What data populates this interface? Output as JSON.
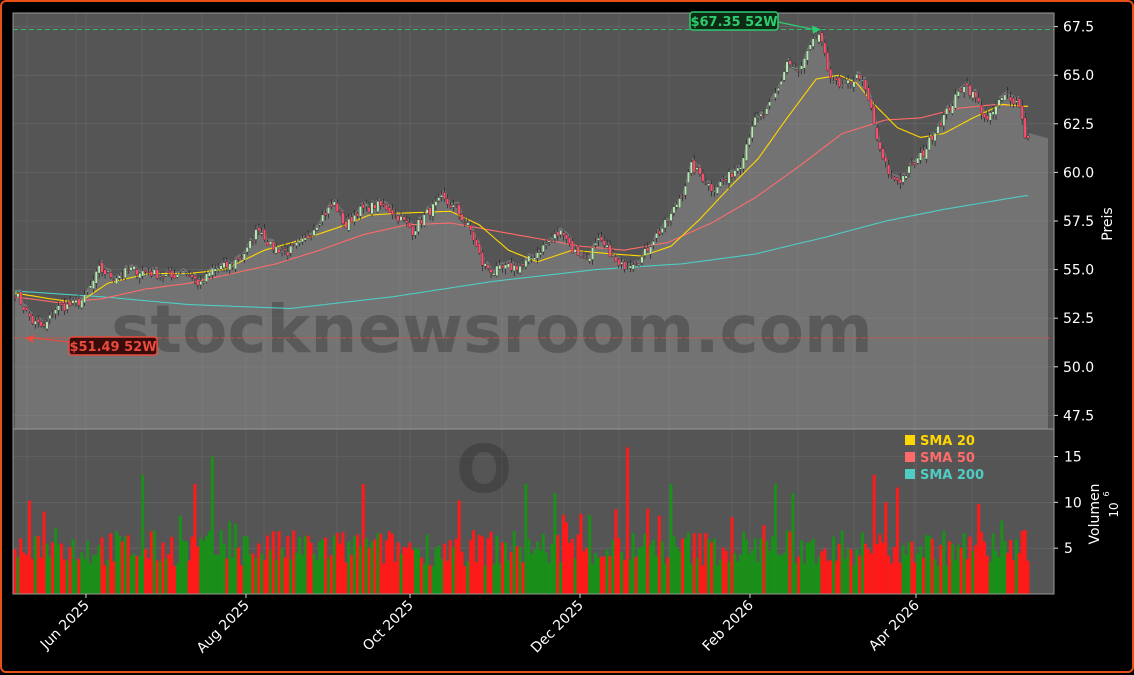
{
  "watermark": "stocknewsroom.com",
  "ticker_watermark": "O",
  "chart_data": {
    "type": "candlestick",
    "price_axis": {
      "label": "Preis",
      "ylim": [
        46.8,
        68.2
      ],
      "ticks": [
        47.5,
        50.0,
        52.5,
        55.0,
        57.5,
        60.0,
        62.5,
        65.0,
        67.5
      ]
    },
    "volume_axis": {
      "label": "Volumen",
      "unit": "10",
      "unit_exp": "6",
      "ylim": [
        0,
        18
      ],
      "ticks": [
        5,
        10,
        15
      ]
    },
    "x_labels": [
      "Jun 2025",
      "Aug 2025",
      "Oct 2025",
      "Dec 2025",
      "Feb 2026",
      "Apr 2026"
    ],
    "annotations": {
      "high": {
        "label": "$67.35 52W",
        "value": 67.35,
        "color": "#2ecc71"
      },
      "low": {
        "label": "$51.49 52W",
        "value": 51.49,
        "color": "#e74c3c"
      }
    },
    "legend": {
      "placement": "top-right (volume panel)",
      "items": [
        {
          "name": "SMA 20",
          "color": "#ffd700"
        },
        {
          "name": "SMA 50",
          "color": "#ff6b6b"
        },
        {
          "name": "SMA 200",
          "color": "#4ecdc4"
        }
      ]
    },
    "anchors_close": [
      [
        0,
        53.8
      ],
      [
        6,
        52.3
      ],
      [
        10,
        52.0
      ],
      [
        14,
        53.0
      ],
      [
        20,
        53.2
      ],
      [
        24,
        53.5
      ],
      [
        29,
        55.0
      ],
      [
        34,
        54.6
      ],
      [
        40,
        55.0
      ],
      [
        48,
        54.8
      ],
      [
        54,
        54.6
      ],
      [
        58,
        55.0
      ],
      [
        64,
        54.2
      ],
      [
        68,
        55.0
      ],
      [
        74,
        55.2
      ],
      [
        80,
        56.0
      ],
      [
        84,
        57.2
      ],
      [
        88,
        56.2
      ],
      [
        94,
        55.9
      ],
      [
        100,
        56.5
      ],
      [
        105,
        57.6
      ],
      [
        110,
        58.4
      ],
      [
        114,
        57.2
      ],
      [
        118,
        58.0
      ],
      [
        124,
        58.3
      ],
      [
        128,
        58.2
      ],
      [
        133,
        57.6
      ],
      [
        137,
        57.0
      ],
      [
        142,
        57.9
      ],
      [
        147,
        58.6
      ],
      [
        152,
        58.1
      ],
      [
        157,
        57.0
      ],
      [
        161,
        55.3
      ],
      [
        165,
        54.9
      ],
      [
        170,
        55.1
      ],
      [
        175,
        55.2
      ],
      [
        180,
        55.9
      ],
      [
        185,
        56.6
      ],
      [
        189,
        57.0
      ],
      [
        192,
        56.0
      ],
      [
        197,
        55.6
      ],
      [
        201,
        56.4
      ],
      [
        205,
        55.9
      ],
      [
        208,
        55.1
      ],
      [
        212,
        55.4
      ],
      [
        216,
        55.6
      ],
      [
        220,
        56.6
      ],
      [
        225,
        57.5
      ],
      [
        230,
        59.0
      ],
      [
        233,
        60.3
      ],
      [
        236,
        59.9
      ],
      [
        240,
        59.2
      ],
      [
        245,
        59.6
      ],
      [
        250,
        60.5
      ],
      [
        254,
        62.5
      ],
      [
        259,
        63.1
      ],
      [
        263,
        64.3
      ],
      [
        266,
        65.7
      ],
      [
        270,
        65.1
      ],
      [
        274,
        66.4
      ],
      [
        277,
        67.1
      ],
      [
        280,
        65.3
      ],
      [
        284,
        64.3
      ],
      [
        287,
        64.6
      ],
      [
        291,
        65.0
      ],
      [
        295,
        63.2
      ],
      [
        298,
        61.0
      ],
      [
        302,
        59.7
      ],
      [
        305,
        59.6
      ],
      [
        309,
        60.3
      ],
      [
        313,
        61.0
      ],
      [
        317,
        62.2
      ],
      [
        321,
        63.1
      ],
      [
        324,
        63.8
      ],
      [
        327,
        64.6
      ],
      [
        331,
        63.8
      ],
      [
        335,
        62.6
      ],
      [
        339,
        63.6
      ],
      [
        342,
        64.0
      ],
      [
        346,
        63.5
      ],
      [
        348,
        61.9
      ]
    ],
    "sma20_anchors": [
      [
        0,
        53.8
      ],
      [
        12,
        53.5
      ],
      [
        22,
        53.3
      ],
      [
        32,
        54.3
      ],
      [
        46,
        54.8
      ],
      [
        60,
        54.8
      ],
      [
        72,
        55.0
      ],
      [
        86,
        56.0
      ],
      [
        98,
        56.5
      ],
      [
        112,
        57.2
      ],
      [
        122,
        57.8
      ],
      [
        132,
        57.9
      ],
      [
        150,
        58.0
      ],
      [
        160,
        57.3
      ],
      [
        170,
        56.0
      ],
      [
        180,
        55.4
      ],
      [
        192,
        56.0
      ],
      [
        206,
        55.8
      ],
      [
        216,
        55.7
      ],
      [
        226,
        56.2
      ],
      [
        236,
        57.6
      ],
      [
        246,
        59.2
      ],
      [
        256,
        60.7
      ],
      [
        266,
        62.8
      ],
      [
        276,
        64.8
      ],
      [
        284,
        65.0
      ],
      [
        290,
        64.6
      ],
      [
        296,
        63.5
      ],
      [
        304,
        62.3
      ],
      [
        312,
        61.8
      ],
      [
        320,
        62.0
      ],
      [
        330,
        62.8
      ],
      [
        340,
        63.5
      ],
      [
        348,
        63.4
      ]
    ],
    "sma50_anchors": [
      [
        0,
        53.6
      ],
      [
        15,
        53.3
      ],
      [
        30,
        53.5
      ],
      [
        45,
        54.0
      ],
      [
        60,
        54.3
      ],
      [
        75,
        54.8
      ],
      [
        90,
        55.3
      ],
      [
        105,
        56.0
      ],
      [
        120,
        56.8
      ],
      [
        135,
        57.3
      ],
      [
        150,
        57.4
      ],
      [
        165,
        57.0
      ],
      [
        180,
        56.6
      ],
      [
        195,
        56.2
      ],
      [
        210,
        56.0
      ],
      [
        225,
        56.4
      ],
      [
        240,
        57.4
      ],
      [
        255,
        58.7
      ],
      [
        270,
        60.3
      ],
      [
        285,
        62.0
      ],
      [
        300,
        62.7
      ],
      [
        312,
        62.8
      ],
      [
        325,
        63.3
      ],
      [
        338,
        63.5
      ],
      [
        348,
        63.4
      ]
    ],
    "sma200_anchors": [
      [
        0,
        53.9
      ],
      [
        30,
        53.6
      ],
      [
        60,
        53.2
      ],
      [
        95,
        53.0
      ],
      [
        130,
        53.6
      ],
      [
        165,
        54.4
      ],
      [
        200,
        55.0
      ],
      [
        230,
        55.3
      ],
      [
        255,
        55.8
      ],
      [
        280,
        56.7
      ],
      [
        300,
        57.5
      ],
      [
        320,
        58.1
      ],
      [
        348,
        58.8
      ]
    ],
    "volume_summary": "daily volume bars in millions, green on up days and red on down days, mostly 3-8 with spikes up to about 16"
  }
}
